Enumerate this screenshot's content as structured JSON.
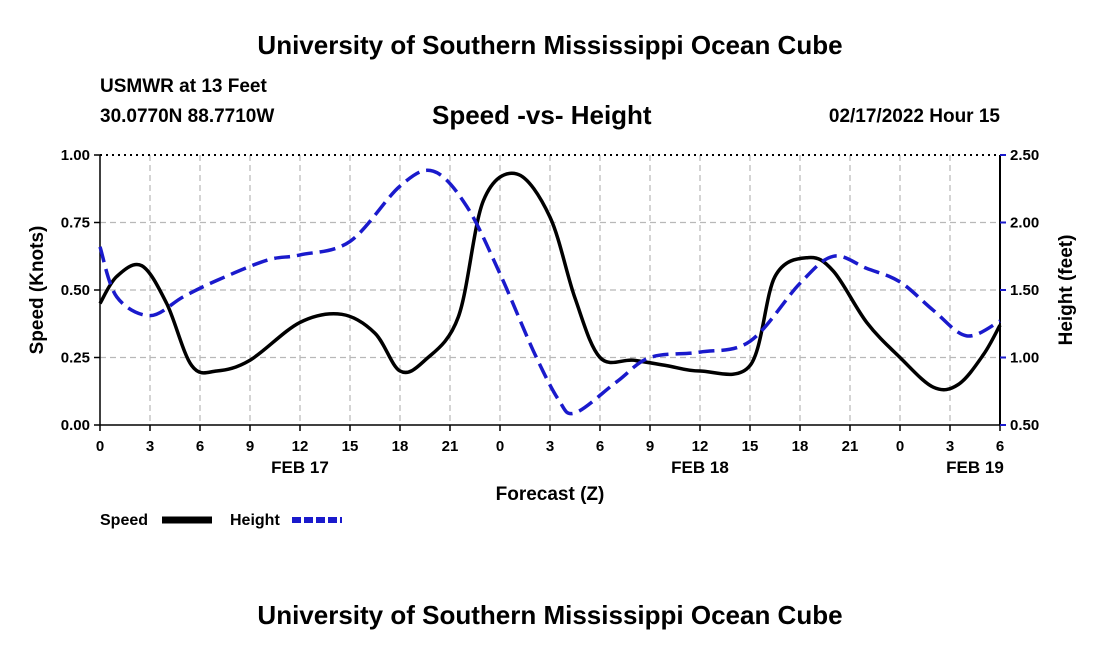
{
  "header": {
    "title": "University of Southern Mississippi Ocean Cube",
    "station": "USMWR at 13 Feet",
    "coords": "30.0770N  88.7710W",
    "chart_title": "Speed -vs- Height",
    "datetime": "02/17/2022 Hour 15"
  },
  "footer": {
    "title": "University of Southern Mississippi Ocean Cube"
  },
  "colors": {
    "speed": "#000000",
    "height": "#1a1acc",
    "grid": "#b8b8b8"
  },
  "chart_data": {
    "type": "line",
    "title": "Speed -vs- Height",
    "xlabel": "Forecast (Z)",
    "ylabel": "Speed (Knots)",
    "y2label": "Height (feet)",
    "x_unit": "hours from 00Z Feb 17",
    "xlim": [
      0,
      54
    ],
    "ylim": [
      0,
      1
    ],
    "y2lim": [
      0.5,
      2.5
    ],
    "x_ticks": [
      0,
      3,
      6,
      9,
      12,
      15,
      18,
      21,
      24,
      27,
      30,
      33,
      36,
      39,
      42,
      45,
      48,
      51,
      54
    ],
    "x_tick_labels": [
      "0",
      "3",
      "6",
      "9",
      "12",
      "15",
      "18",
      "21",
      "0",
      "3",
      "6",
      "9",
      "12",
      "15",
      "18",
      "21",
      "0",
      "3",
      "6"
    ],
    "y_ticks": [
      0,
      0.25,
      0.5,
      0.75,
      1.0
    ],
    "y_tick_labels": [
      "0.00",
      "0.25",
      "0.50",
      "0.75",
      "1.00"
    ],
    "y2_ticks": [
      0.5,
      1.0,
      1.5,
      2.0,
      2.5
    ],
    "y2_tick_labels": [
      "0.50",
      "1.00",
      "1.50",
      "2.00",
      "2.50"
    ],
    "day_labels": [
      {
        "x": 12,
        "label": "FEB 17"
      },
      {
        "x": 36,
        "label": "FEB 18"
      },
      {
        "x": 52.5,
        "label": "FEB 19"
      }
    ],
    "grid": true,
    "legend": [
      {
        "label": "Speed",
        "series": "speed"
      },
      {
        "label": "Height",
        "series": "height"
      }
    ],
    "series": [
      {
        "name": "Speed",
        "axis": "left",
        "style": "solid",
        "x": [
          0,
          1,
          2.5,
          4,
          5.5,
          7,
          9,
          12,
          14.5,
          16.5,
          18,
          19.5,
          21.5,
          23,
          25,
          27,
          28.5,
          30,
          32,
          34,
          36,
          39,
          40.5,
          42.5,
          44,
          46,
          48,
          50,
          51.5,
          53,
          54
        ],
        "y": [
          0.45,
          0.55,
          0.59,
          0.45,
          0.22,
          0.2,
          0.24,
          0.38,
          0.41,
          0.34,
          0.2,
          0.24,
          0.4,
          0.83,
          0.93,
          0.77,
          0.47,
          0.25,
          0.24,
          0.22,
          0.2,
          0.22,
          0.55,
          0.62,
          0.57,
          0.38,
          0.25,
          0.14,
          0.15,
          0.26,
          0.37
        ]
      },
      {
        "name": "Height",
        "axis": "right",
        "style": "dashed",
        "x": [
          0,
          1,
          3,
          5,
          7,
          10,
          12,
          15,
          18,
          20,
          22,
          24,
          26,
          27.5,
          28.5,
          31,
          33,
          36,
          39,
          42,
          44,
          46,
          48,
          50,
          52,
          54
        ],
        "y": [
          1.82,
          1.45,
          1.31,
          1.45,
          1.57,
          1.72,
          1.76,
          1.86,
          2.27,
          2.38,
          2.12,
          1.62,
          1.05,
          0.69,
          0.59,
          0.82,
          1.0,
          1.04,
          1.12,
          1.55,
          1.75,
          1.66,
          1.56,
          1.35,
          1.16,
          1.27
        ]
      }
    ]
  }
}
